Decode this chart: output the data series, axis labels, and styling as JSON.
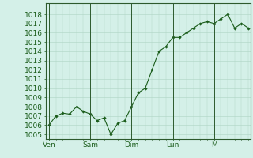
{
  "y_values": [
    1006,
    1007,
    1007.3,
    1007.2,
    1008,
    1007.5,
    1007.2,
    1006.5,
    1006.8,
    1005.0,
    1006.2,
    1006.5,
    1008,
    1009.5,
    1010,
    1012,
    1014,
    1014.5,
    1015.5,
    1015.5,
    1016,
    1016.5,
    1017,
    1017.2,
    1017,
    1017.5,
    1018,
    1016.5,
    1017,
    1016.5
  ],
  "x_ticks_pos": [
    0,
    6,
    12,
    18,
    24
  ],
  "x_tick_labels": [
    "Ven",
    "Sam",
    "Dim",
    "Lun",
    "M"
  ],
  "y_min": 1004.5,
  "y_max": 1019.2,
  "y_ticks": [
    1005,
    1006,
    1007,
    1008,
    1009,
    1010,
    1011,
    1012,
    1013,
    1014,
    1015,
    1016,
    1017,
    1018
  ],
  "line_color": "#1a5c1a",
  "marker_color": "#1a5c1a",
  "bg_color": "#d4f0e8",
  "grid_color": "#aed4c4",
  "axis_color": "#2d5a2d",
  "major_vline_pos": [
    0,
    6,
    12,
    18,
    24
  ],
  "tick_label_color": "#1a5c1a",
  "tick_label_fontsize": 6.5,
  "n_points": 30
}
